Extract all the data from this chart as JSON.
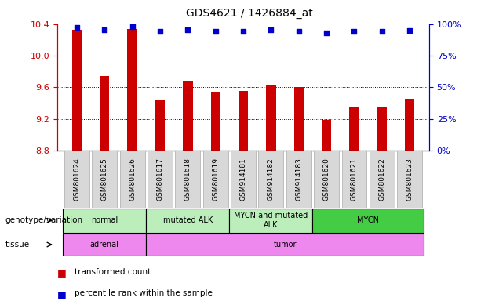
{
  "title": "GDS4621 / 1426884_at",
  "samples": [
    "GSM801624",
    "GSM801625",
    "GSM801626",
    "GSM801617",
    "GSM801618",
    "GSM801619",
    "GSM914181",
    "GSM914182",
    "GSM914183",
    "GSM801620",
    "GSM801621",
    "GSM801622",
    "GSM801623"
  ],
  "red_values": [
    10.33,
    9.74,
    10.34,
    9.43,
    9.68,
    9.54,
    9.55,
    9.62,
    9.6,
    9.19,
    9.36,
    9.35,
    9.45
  ],
  "blue_values": [
    10.36,
    10.33,
    10.37,
    10.31,
    10.33,
    10.31,
    10.31,
    10.33,
    10.31,
    10.29,
    10.31,
    10.31,
    10.32
  ],
  "ylim": [
    8.8,
    10.4
  ],
  "yticks_left": [
    8.8,
    9.2,
    9.6,
    10.0,
    10.4
  ],
  "yticks_right": [
    0,
    25,
    50,
    75,
    100
  ],
  "bar_color": "#cc0000",
  "dot_color": "#0000cc",
  "bar_bottom": 8.8,
  "bar_width": 0.35,
  "genotype_groups": [
    {
      "label": "normal",
      "start": 0,
      "end": 3,
      "color": "#bbeebb"
    },
    {
      "label": "mutated ALK",
      "start": 3,
      "end": 6,
      "color": "#bbeebb"
    },
    {
      "label": "MYCN and mutated\nALK",
      "start": 6,
      "end": 9,
      "color": "#bbeebb"
    },
    {
      "label": "MYCN",
      "start": 9,
      "end": 13,
      "color": "#44cc44"
    }
  ],
  "tissue_groups": [
    {
      "label": "adrenal",
      "start": 0,
      "end": 3,
      "color": "#ee88ee"
    },
    {
      "label": "tumor",
      "start": 3,
      "end": 13,
      "color": "#ee88ee"
    }
  ],
  "left_label": "genotype/variation",
  "tissue_label": "tissue",
  "legend_red": "transformed count",
  "legend_blue": "percentile rank within the sample",
  "left_axis_color": "#cc0000",
  "right_axis_color": "#0000cc",
  "tick_bg_color": "#d8d8d8"
}
